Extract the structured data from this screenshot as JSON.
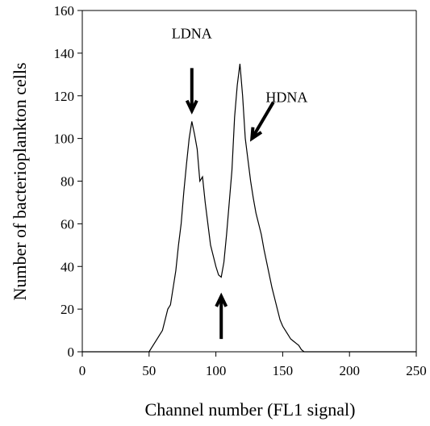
{
  "chart_data": {
    "type": "line",
    "title": "",
    "xlabel": "Channel number (FL1 signal)",
    "ylabel": "Number of bacterioplankton cells",
    "xlim": [
      0,
      250
    ],
    "ylim": [
      0,
      160
    ],
    "xticks": [
      0,
      50,
      100,
      150,
      200,
      250
    ],
    "yticks": [
      0,
      20,
      40,
      60,
      80,
      100,
      120,
      140,
      160
    ],
    "grid": false,
    "legend": "none",
    "series": [
      {
        "color": "#000000",
        "x": [
          0,
          50,
          52,
          54,
          56,
          58,
          60,
          62,
          64,
          66,
          68,
          70,
          72,
          74,
          76,
          78,
          80,
          82,
          84,
          86,
          88,
          90,
          92,
          94,
          96,
          98,
          100,
          102,
          104,
          106,
          108,
          110,
          112,
          114,
          116,
          118,
          120,
          122,
          124,
          126,
          128,
          130,
          132,
          134,
          136,
          138,
          140,
          142,
          144,
          146,
          148,
          150,
          152,
          154,
          156,
          158,
          160,
          162,
          164,
          166,
          170,
          250
        ],
        "y": [
          0,
          0,
          2,
          4,
          6,
          8,
          10,
          15,
          20,
          22,
          30,
          38,
          50,
          60,
          75,
          88,
          100,
          108,
          102,
          95,
          80,
          82,
          70,
          60,
          50,
          45,
          40,
          36,
          35,
          42,
          55,
          70,
          85,
          110,
          125,
          135,
          120,
          100,
          90,
          80,
          72,
          65,
          60,
          55,
          48,
          42,
          36,
          30,
          25,
          20,
          15,
          12,
          10,
          8,
          6,
          5,
          4,
          3,
          1,
          0,
          0,
          0
        ]
      }
    ],
    "annotations": [
      {
        "text": "LDNA",
        "x": 82,
        "y": 147
      },
      {
        "text": "HDNA",
        "x": 153,
        "y": 117
      },
      {
        "text": "",
        "arrow_tip": [
          104,
          35
        ]
      }
    ]
  }
}
